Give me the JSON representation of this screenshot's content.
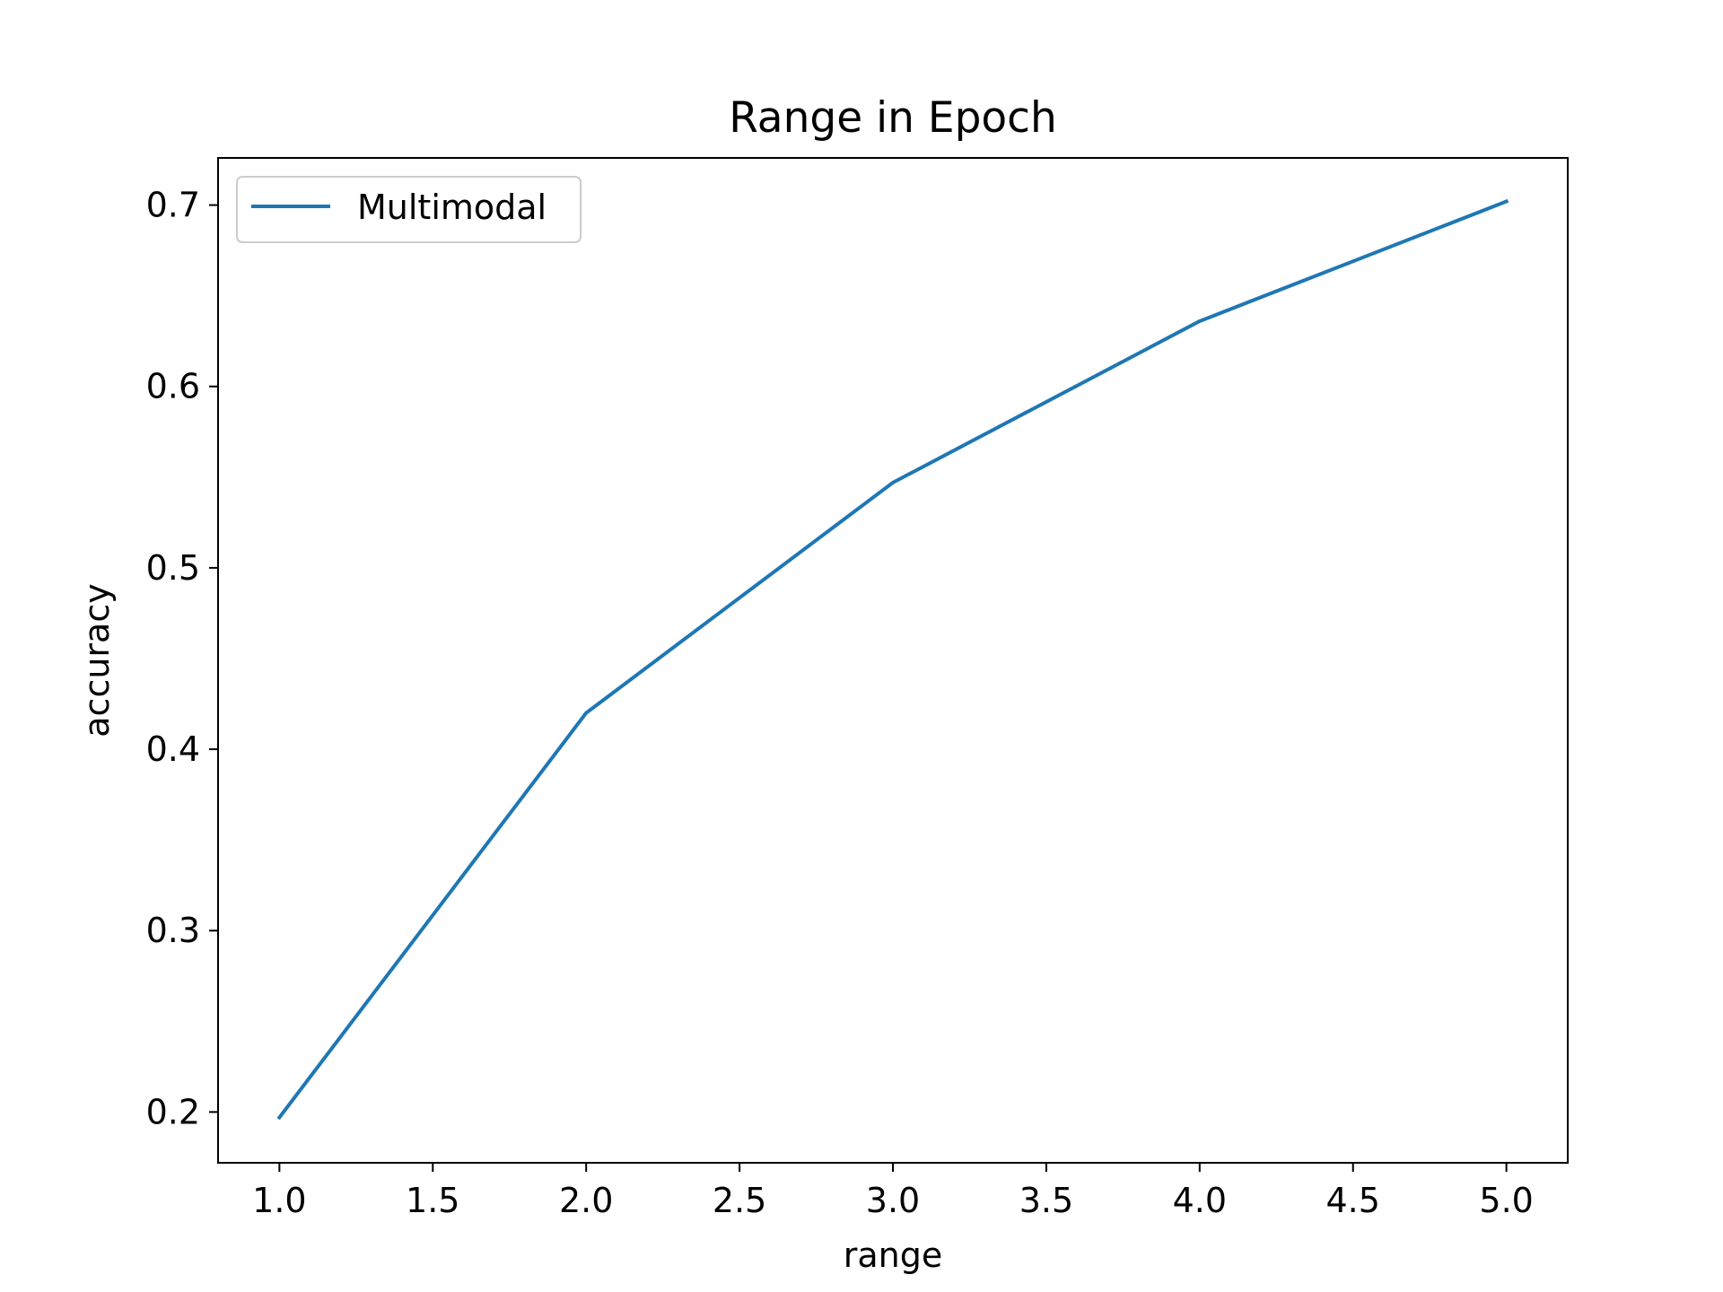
{
  "chart_data": {
    "type": "line",
    "title": "Range in Epoch",
    "xlabel": "range",
    "ylabel": "accuracy",
    "x": [
      1.0,
      2.0,
      3.0,
      4.0,
      5.0
    ],
    "series": [
      {
        "name": "Multimodal",
        "color": "#1f77b4",
        "values": [
          0.197,
          0.42,
          0.547,
          0.636,
          0.702
        ]
      }
    ],
    "xlim": [
      0.8,
      5.2
    ],
    "ylim": [
      0.172,
      0.726
    ],
    "xticks": [
      1.0,
      1.5,
      2.0,
      2.5,
      3.0,
      3.5,
      4.0,
      4.5,
      5.0
    ],
    "xtick_labels": [
      "1.0",
      "1.5",
      "2.0",
      "2.5",
      "3.0",
      "3.5",
      "4.0",
      "4.5",
      "5.0"
    ],
    "yticks": [
      0.2,
      0.3,
      0.4,
      0.5,
      0.6,
      0.7
    ],
    "ytick_labels": [
      "0.2",
      "0.3",
      "0.4",
      "0.5",
      "0.6",
      "0.7"
    ],
    "grid": false,
    "legend_position": "top-left"
  }
}
